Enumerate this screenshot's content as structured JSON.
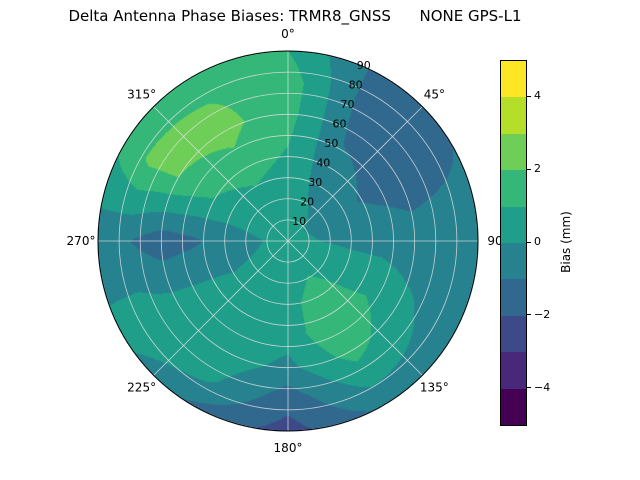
{
  "chart_data": {
    "type": "heatmap",
    "projection": "polar",
    "title": "Delta Antenna Phase Biases: TRMR8_GNSS      NONE GPS-L1",
    "angle_convention": "azimuth degrees, 0 at top, clockwise",
    "angle_tick_labels": [
      {
        "deg": 0,
        "label": "0°"
      },
      {
        "deg": 45,
        "label": "45°"
      },
      {
        "deg": 90,
        "label": "90"
      },
      {
        "deg": 135,
        "label": "135°"
      },
      {
        "deg": 180,
        "label": "180°"
      },
      {
        "deg": 225,
        "label": "225°"
      },
      {
        "deg": 270,
        "label": "270°"
      },
      {
        "deg": 315,
        "label": "315°"
      }
    ],
    "radial_ticks": {
      "label_angle_deg": 22.5,
      "values": [
        10,
        20,
        30,
        40,
        50,
        60,
        70,
        80,
        90
      ],
      "max": 90
    },
    "colorbar": {
      "label": "Bias (mm)",
      "min": -5,
      "max": 5,
      "level_step": 1,
      "tick_values": [
        4,
        2,
        0,
        -2,
        -4
      ],
      "tick_labels": [
        "4",
        "2",
        "0",
        "−2",
        "−4"
      ],
      "level_colors_low_to_high": [
        "#440154",
        "#482878",
        "#3e4989",
        "#31688e",
        "#26828e",
        "#1f9e89",
        "#35b779",
        "#6ece58",
        "#b5de2b",
        "#fde725"
      ]
    },
    "grid": {
      "azimuth_deg": [
        0,
        30,
        60,
        90,
        120,
        150,
        180,
        210,
        240,
        270,
        300,
        330
      ],
      "zenith_deg": [
        0,
        15,
        30,
        45,
        60,
        75,
        90
      ],
      "bias_mm": [
        [
          0.3,
          0.3,
          0.3,
          0.3,
          0.3,
          0.3,
          0.3,
          0.3,
          0.3,
          0.3,
          0.3,
          0.3
        ],
        [
          0.4,
          0.1,
          -0.2,
          0.0,
          0.5,
          0.8,
          0.4,
          0.2,
          0.1,
          -0.1,
          0.3,
          0.5
        ],
        [
          0.6,
          -0.3,
          -0.8,
          -0.2,
          0.6,
          1.6,
          0.6,
          0.3,
          0.0,
          -0.6,
          0.5,
          1.0
        ],
        [
          1.0,
          -0.8,
          -1.2,
          -0.4,
          0.8,
          2.0,
          0.4,
          0.5,
          0.2,
          -1.2,
          1.2,
          1.8
        ],
        [
          1.4,
          -1.2,
          -1.5,
          -0.6,
          0.3,
          1.4,
          -0.3,
          0.6,
          0.4,
          -1.6,
          2.0,
          2.3
        ],
        [
          1.6,
          -1.5,
          -1.3,
          -0.5,
          -0.2,
          0.4,
          -1.6,
          0.2,
          0.6,
          -1.0,
          2.2,
          2.0
        ],
        [
          1.0,
          -1.4,
          -1.0,
          -0.6,
          -0.6,
          -0.8,
          -2.4,
          -1.2,
          0.3,
          -0.6,
          1.2,
          1.4
        ]
      ]
    },
    "grid_lines": {
      "color": "#e0e0e0",
      "opacity": 0.85
    }
  }
}
